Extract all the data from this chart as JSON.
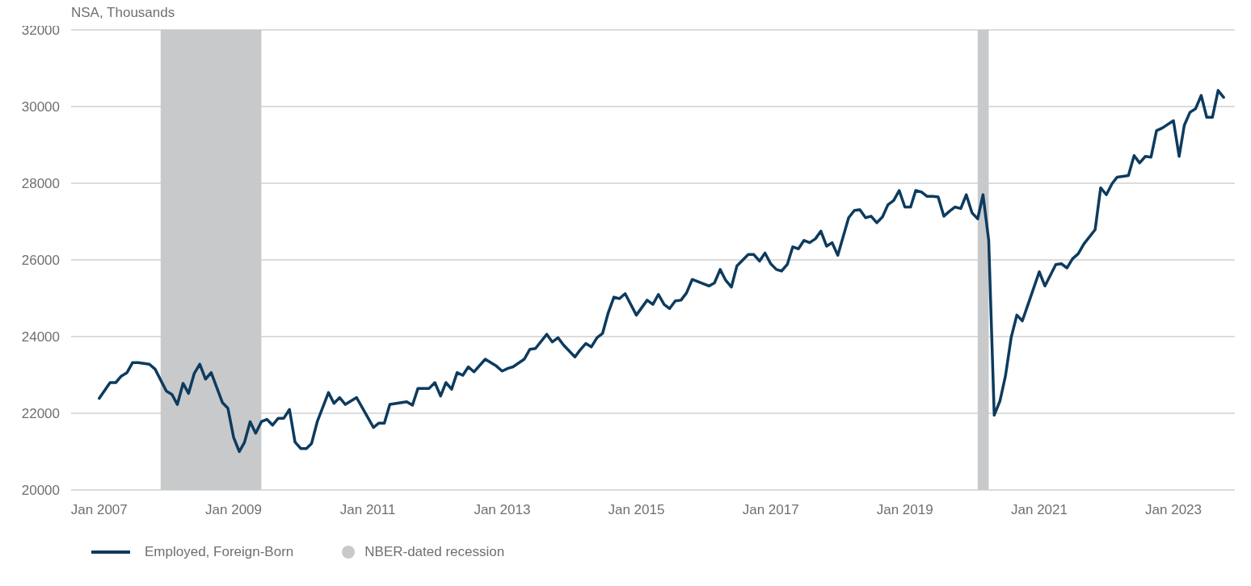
{
  "chart_data": {
    "type": "line",
    "ylabel": "NSA, Thousands",
    "x": [
      "2007-01",
      "2007-03",
      "2007-04",
      "2007-05",
      "2007-06",
      "2007-07",
      "2007-08",
      "2007-10",
      "2007-11",
      "2008-01",
      "2008-02",
      "2008-03",
      "2008-04",
      "2008-05",
      "2008-06",
      "2008-07",
      "2008-08",
      "2008-09",
      "2008-11",
      "2008-12",
      "2009-01",
      "2009-02",
      "2009-03",
      "2009-04",
      "2009-05",
      "2009-06",
      "2009-07",
      "2009-08",
      "2009-09",
      "2009-10",
      "2009-11",
      "2009-12",
      "2010-01",
      "2010-02",
      "2010-03",
      "2010-04",
      "2010-06",
      "2010-07",
      "2010-08",
      "2010-09",
      "2010-11",
      "2011-02",
      "2011-03",
      "2011-04",
      "2011-05",
      "2011-08",
      "2011-09",
      "2011-10",
      "2011-12",
      "2012-01",
      "2012-02",
      "2012-03",
      "2012-04",
      "2012-05",
      "2012-06",
      "2012-07",
      "2012-08",
      "2012-10",
      "2012-12",
      "2013-01",
      "2013-02",
      "2013-03",
      "2013-05",
      "2013-06",
      "2013-07",
      "2013-09",
      "2013-10",
      "2013-11",
      "2013-12",
      "2014-02",
      "2014-03",
      "2014-04",
      "2014-05",
      "2014-06",
      "2014-07",
      "2014-08",
      "2014-09",
      "2014-10",
      "2014-11",
      "2015-01",
      "2015-03",
      "2015-04",
      "2015-05",
      "2015-06",
      "2015-07",
      "2015-08",
      "2015-09",
      "2015-10",
      "2015-11",
      "2016-02",
      "2016-03",
      "2016-04",
      "2016-05",
      "2016-06",
      "2016-07",
      "2016-09",
      "2016-10",
      "2016-11",
      "2016-12",
      "2017-01",
      "2017-02",
      "2017-03",
      "2017-04",
      "2017-05",
      "2017-06",
      "2017-07",
      "2017-08",
      "2017-09",
      "2017-10",
      "2017-11",
      "2017-12",
      "2018-01",
      "2018-03",
      "2018-04",
      "2018-05",
      "2018-06",
      "2018-07",
      "2018-08",
      "2018-09",
      "2018-10",
      "2018-11",
      "2018-12",
      "2019-01",
      "2019-02",
      "2019-03",
      "2019-04",
      "2019-05",
      "2019-06",
      "2019-07",
      "2019-08",
      "2019-09",
      "2019-10",
      "2019-11",
      "2019-12",
      "2020-01",
      "2020-02",
      "2020-03",
      "2020-04",
      "2020-05",
      "2020-06",
      "2020-07",
      "2020-08",
      "2020-09",
      "2020-10",
      "2020-11",
      "2021-01",
      "2021-02",
      "2021-04",
      "2021-05",
      "2021-06",
      "2021-07",
      "2021-08",
      "2021-09",
      "2021-11",
      "2021-12",
      "2022-01",
      "2022-02",
      "2022-03",
      "2022-05",
      "2022-06",
      "2022-07",
      "2022-08",
      "2022-09",
      "2022-10",
      "2022-11",
      "2023-01",
      "2023-02",
      "2023-03",
      "2023-04",
      "2023-05",
      "2023-06",
      "2023-07",
      "2023-08",
      "2023-09",
      "2023-10"
    ],
    "series": [
      {
        "name": "Employed, Foreign-Born",
        "color": "#0d3b5e",
        "values": [
          22390,
          22800,
          22800,
          22970,
          23060,
          23320,
          23320,
          23280,
          23150,
          22580,
          22490,
          22230,
          22780,
          22520,
          23040,
          23280,
          22890,
          23060,
          22280,
          22130,
          21370,
          21000,
          21240,
          21780,
          21480,
          21780,
          21840,
          21690,
          21870,
          21870,
          22100,
          21250,
          21080,
          21080,
          21210,
          21780,
          22540,
          22260,
          22410,
          22230,
          22410,
          21630,
          21740,
          21740,
          22230,
          22300,
          22210,
          22650,
          22650,
          22800,
          22450,
          22800,
          22630,
          23060,
          22990,
          23210,
          23080,
          23410,
          23230,
          23100,
          23170,
          23210,
          23410,
          23670,
          23690,
          24060,
          23860,
          23970,
          23780,
          23470,
          23650,
          23820,
          23730,
          23970,
          24080,
          24620,
          25030,
          24990,
          25120,
          24560,
          24950,
          24840,
          25100,
          24840,
          24730,
          24930,
          24950,
          25140,
          25490,
          25320,
          25400,
          25750,
          25470,
          25290,
          25840,
          26140,
          26140,
          25970,
          26180,
          25900,
          25750,
          25710,
          25880,
          26340,
          26290,
          26510,
          26450,
          26550,
          26750,
          26360,
          26450,
          26120,
          27100,
          27290,
          27310,
          27100,
          27140,
          26970,
          27120,
          27440,
          27550,
          27810,
          27380,
          27380,
          27810,
          27770,
          27660,
          27660,
          27640,
          27140,
          27270,
          27380,
          27340,
          27700,
          27230,
          27070,
          27700,
          26510,
          21950,
          22320,
          22970,
          23970,
          24560,
          24410,
          24840,
          25690,
          25320,
          25880,
          25900,
          25790,
          26030,
          26160,
          26420,
          26790,
          27880,
          27700,
          27990,
          28160,
          28200,
          28720,
          28530,
          28700,
          28680,
          29370,
          29440,
          29630,
          28700,
          29510,
          29850,
          29940,
          30290,
          29720,
          29720,
          30420,
          30240
        ]
      }
    ],
    "xlim": [
      "2006-08",
      "2023-12"
    ],
    "xticks": [
      {
        "value": "2007-01",
        "label": "Jan 2007"
      },
      {
        "value": "2009-01",
        "label": "Jan 2009"
      },
      {
        "value": "2011-01",
        "label": "Jan 2011"
      },
      {
        "value": "2013-01",
        "label": "Jan 2013"
      },
      {
        "value": "2015-01",
        "label": "Jan 2015"
      },
      {
        "value": "2017-01",
        "label": "Jan 2017"
      },
      {
        "value": "2019-01",
        "label": "Jan 2019"
      },
      {
        "value": "2021-01",
        "label": "Jan 2021"
      },
      {
        "value": "2023-01",
        "label": "Jan 2023"
      }
    ],
    "ylim": [
      20000,
      32000
    ],
    "yticks": [
      20000,
      22000,
      24000,
      26000,
      28000,
      30000,
      32000
    ],
    "bands": [
      {
        "axis": "x",
        "from": "2007-12",
        "to": "2009-06",
        "label": "NBER-dated recession",
        "color": "#c8c9cb"
      },
      {
        "axis": "x",
        "from": "2020-02",
        "to": "2020-04",
        "color": "#c8c9cb"
      }
    ],
    "grid": "y",
    "legend": "bottom left",
    "marker": "none",
    "line_style": "solid"
  }
}
